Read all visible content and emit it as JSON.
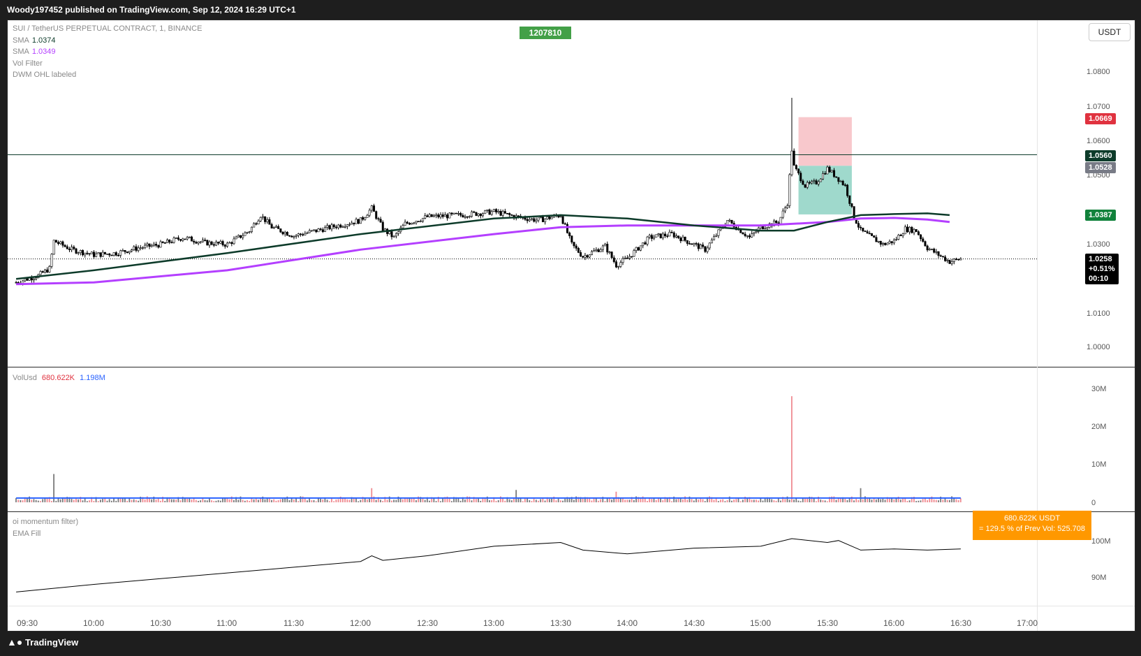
{
  "header": {
    "published": "Woody197452 published on TradingView.com, Sep 12, 2024 16:29 UTC+1"
  },
  "footer": {
    "brand": "TradingView",
    "logo_icon": "tradingview-logo-icon"
  },
  "symbol_legend": {
    "symbol": "SUI / TetherUS PERPETUAL CONTRACT, 1, BINANCE",
    "sma1_label": "SMA",
    "sma1_value": "1.0374",
    "sma2_label": "SMA",
    "sma2_value": "1.0349",
    "ind3": "Vol Filter",
    "ind4": "DWM OHL labeled"
  },
  "id_badge": "1207810",
  "currency_button": "USDT",
  "price_axis": {
    "ticks": [
      "1.0800",
      "1.0700",
      "1.0600",
      "1.0500",
      "1.0300",
      "1.0100",
      "1.0000"
    ],
    "tag_sl": "1.0669",
    "tag_line": "1.0560",
    "tag_entry": "1.0528",
    "tag_tp": "1.0387",
    "tag_last": "1.0258",
    "tag_change": "+0.51%",
    "tag_timer": "00:10"
  },
  "volume_legend": {
    "name": "VolUsd",
    "v1": "680.622K",
    "v2": "1.198M",
    "ticks": [
      "30M",
      "20M",
      "10M",
      "0"
    ],
    "callout_line1": "680.622K USDT",
    "callout_line2": "= 129.5 % of Prev Vol: 525.708"
  },
  "oi_legend": {
    "name": "oi momentum filter)",
    "sub": "EMA Fill",
    "ticks": [
      "100M",
      "90M"
    ]
  },
  "time_axis": [
    "09:30",
    "10:00",
    "10:30",
    "11:00",
    "11:30",
    "12:00",
    "12:30",
    "13:00",
    "13:30",
    "14:00",
    "14:30",
    "15:00",
    "15:30",
    "16:00",
    "16:30",
    "17:00"
  ],
  "colors": {
    "up": "#ffffff",
    "down": "#000000",
    "sma_dark": "#0d3b2a",
    "sma_purple": "#b43fff",
    "sl_zone": "#f8c8cc",
    "tp_zone": "#9fd9cc",
    "tag_red": "#e0323f",
    "tag_green": "#11823b",
    "vol_up": "#7a7a7a",
    "vol_down": "#ef8a90",
    "vol_ma": "#2962ff"
  },
  "chart_data": {
    "type": "candlestick",
    "title": "SUI / TetherUS PERPETUAL CONTRACT, 1, BINANCE",
    "x_range": [
      "09:30",
      "16:30"
    ],
    "ylim": [
      0.995,
      1.085
    ],
    "close_path": [
      [
        "09:25",
        1.019
      ],
      [
        "09:35",
        1.021
      ],
      [
        "09:40",
        1.023
      ],
      [
        "09:42",
        1.031
      ],
      [
        "09:50",
        1.0285
      ],
      [
        "10:00",
        1.027
      ],
      [
        "10:10",
        1.0275
      ],
      [
        "10:20",
        1.029
      ],
      [
        "10:30",
        1.03
      ],
      [
        "10:40",
        1.032
      ],
      [
        "10:50",
        1.0305
      ],
      [
        "11:00",
        1.03
      ],
      [
        "11:10",
        1.034
      ],
      [
        "11:15",
        1.0385
      ],
      [
        "11:20",
        1.035
      ],
      [
        "11:30",
        1.0325
      ],
      [
        "11:40",
        1.034
      ],
      [
        "11:50",
        1.0355
      ],
      [
        "12:00",
        1.037
      ],
      [
        "12:05",
        1.0405
      ],
      [
        "12:10",
        1.0345
      ],
      [
        "12:15",
        1.032
      ],
      [
        "12:20",
        1.036
      ],
      [
        "12:30",
        1.038
      ],
      [
        "12:45",
        1.0385
      ],
      [
        "13:00",
        1.0395
      ],
      [
        "13:10",
        1.038
      ],
      [
        "13:20",
        1.037
      ],
      [
        "13:30",
        1.0385
      ],
      [
        "13:35",
        1.03
      ],
      [
        "13:40",
        1.0265
      ],
      [
        "13:50",
        1.0295
      ],
      [
        "13:55",
        1.024
      ],
      [
        "14:00",
        1.026
      ],
      [
        "14:10",
        1.032
      ],
      [
        "14:20",
        1.033
      ],
      [
        "14:30",
        1.03
      ],
      [
        "14:35",
        1.0285
      ],
      [
        "14:45",
        1.037
      ],
      [
        "14:55",
        1.032
      ],
      [
        "15:00",
        1.035
      ],
      [
        "15:08",
        1.0365
      ],
      [
        "15:12",
        1.042
      ],
      [
        "15:14",
        1.0575
      ],
      [
        "15:15",
        1.0525
      ],
      [
        "15:20",
        1.047
      ],
      [
        "15:25",
        1.048
      ],
      [
        "15:30",
        1.052
      ],
      [
        "15:35",
        1.049
      ],
      [
        "15:38",
        1.047
      ],
      [
        "15:42",
        1.038
      ],
      [
        "15:45",
        1.034
      ],
      [
        "15:55",
        1.03
      ],
      [
        "16:00",
        1.031
      ],
      [
        "16:05",
        1.0345
      ],
      [
        "16:10",
        1.034
      ],
      [
        "16:15",
        1.029
      ],
      [
        "16:20",
        1.027
      ],
      [
        "16:25",
        1.025
      ],
      [
        "16:30",
        1.0258
      ]
    ],
    "spike_high": [
      [
        "15:14",
        1.0725
      ]
    ],
    "sma_dark": [
      [
        "09:25",
        1.02
      ],
      [
        "10:00",
        1.0225
      ],
      [
        "11:00",
        1.0275
      ],
      [
        "12:00",
        1.033
      ],
      [
        "13:00",
        1.0375
      ],
      [
        "13:30",
        1.0385
      ],
      [
        "14:00",
        1.0375
      ],
      [
        "14:30",
        1.0355
      ],
      [
        "15:00",
        1.034
      ],
      [
        "15:15",
        1.034
      ],
      [
        "15:30",
        1.0365
      ],
      [
        "15:45",
        1.0385
      ],
      [
        "16:00",
        1.0388
      ],
      [
        "16:15",
        1.039
      ],
      [
        "16:25",
        1.0385
      ]
    ],
    "sma_purple": [
      [
        "09:25",
        1.0185
      ],
      [
        "10:00",
        1.019
      ],
      [
        "11:00",
        1.0225
      ],
      [
        "12:00",
        1.0285
      ],
      [
        "13:00",
        1.033
      ],
      [
        "13:30",
        1.035
      ],
      [
        "14:00",
        1.0355
      ],
      [
        "14:30",
        1.0355
      ],
      [
        "15:00",
        1.0355
      ],
      [
        "15:30",
        1.0365
      ],
      [
        "15:45",
        1.0375
      ],
      [
        "16:00",
        1.0377
      ],
      [
        "16:15",
        1.0372
      ],
      [
        "16:25",
        1.0365
      ]
    ],
    "horizontal_line": 1.056,
    "position": {
      "entry": 1.0528,
      "stop": 1.0669,
      "target": 1.0387,
      "start": "15:17",
      "end": "15:41"
    },
    "volume": {
      "ylim": [
        0,
        32000000
      ],
      "spikes": [
        [
          "09:42",
          8000000
        ],
        [
          "15:14",
          30000000
        ],
        [
          "12:05",
          4000000
        ],
        [
          "13:10",
          3500000
        ],
        [
          "13:55",
          3000000
        ],
        [
          "15:45",
          4000000
        ]
      ],
      "ma_level": 1198000
    },
    "oi": {
      "ylim": [
        86000000,
        108000000
      ],
      "series": [
        [
          "09:25",
          88500000
        ],
        [
          "10:00",
          90500000
        ],
        [
          "10:30",
          92000000
        ],
        [
          "11:00",
          93500000
        ],
        [
          "11:30",
          95000000
        ],
        [
          "12:00",
          96500000
        ],
        [
          "12:05",
          98000000
        ],
        [
          "12:10",
          96800000
        ],
        [
          "12:30",
          98000000
        ],
        [
          "13:00",
          100500000
        ],
        [
          "13:30",
          101500000
        ],
        [
          "13:40",
          99500000
        ],
        [
          "14:00",
          98500000
        ],
        [
          "14:30",
          100000000
        ],
        [
          "15:00",
          100500000
        ],
        [
          "15:14",
          102500000
        ],
        [
          "15:30",
          101500000
        ],
        [
          "15:35",
          102000000
        ],
        [
          "15:45",
          99500000
        ],
        [
          "16:00",
          99800000
        ],
        [
          "16:15",
          99500000
        ],
        [
          "16:30",
          99800000
        ]
      ]
    }
  }
}
